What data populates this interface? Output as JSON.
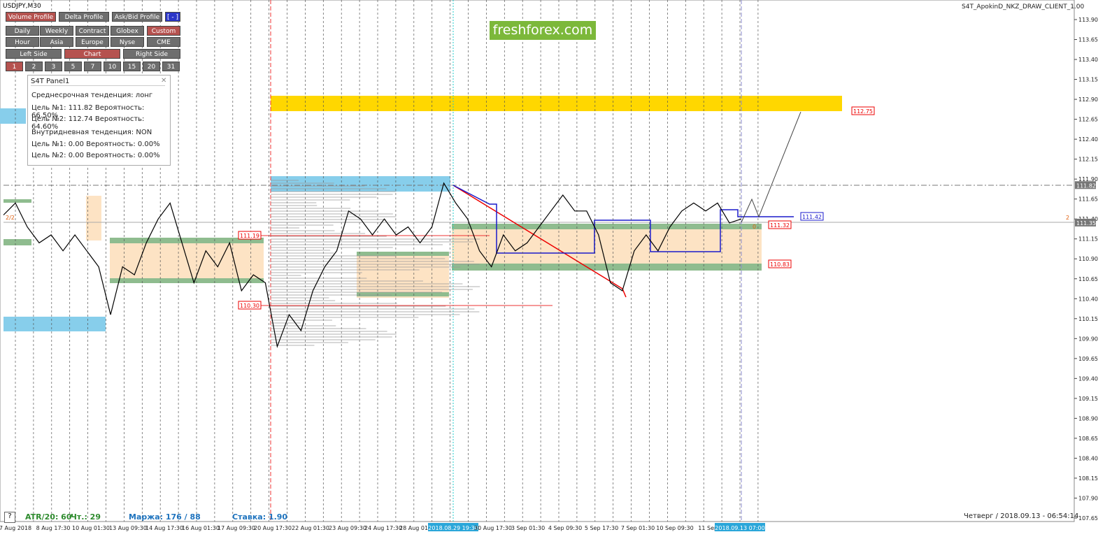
{
  "header": {
    "symbol": "USDJPY,M30",
    "indicator": "S4T_ApokinD_NKZ_DRAW_CLIENT_1.00",
    "logo": "freshforex.com"
  },
  "toolbar": {
    "rows": [
      [
        "Volume Profile",
        "Delta Profile",
        "Ask/Bid Profile",
        "[ - ]"
      ],
      [
        "Daily",
        "Weekly",
        "Contract",
        "Globex",
        "Custom"
      ],
      [
        "Hour",
        "Asia",
        "Europe",
        "Nyse",
        "CME"
      ],
      [
        "Left Side",
        "Chart",
        "Right Side"
      ],
      [
        "1",
        "2",
        "3",
        "5",
        "7",
        "10",
        "15",
        "20",
        "31"
      ]
    ]
  },
  "panel": {
    "title": "S4T Panel1",
    "lines": [
      "Среднесрочная тенденция: лонг",
      "Цель №1: 111.82 Вероятность: 66.50%",
      "Цель №2: 112.74 Вероятность: 64.60%",
      "Внутридневная тенденция: NON",
      "Цель №1: 0.00 Вероятность: 0.00%",
      "Цель №2: 0.00 Вероятность: 0.00%"
    ]
  },
  "chart": {
    "yticks": [
      {
        "value": 113.9,
        "label": "113.90"
      },
      {
        "value": 113.65,
        "label": "113.65"
      },
      {
        "value": 113.4,
        "label": "113.40"
      },
      {
        "value": 113.15,
        "label": "113.15"
      },
      {
        "value": 112.9,
        "label": "112.90"
      },
      {
        "value": 112.65,
        "label": "112.65"
      },
      {
        "value": 112.4,
        "label": "112.40"
      },
      {
        "value": 112.15,
        "label": "112.15"
      },
      {
        "value": 111.9,
        "label": "111.90"
      },
      {
        "value": 111.65,
        "label": "111.65"
      },
      {
        "value": 111.4,
        "label": "111.40"
      },
      {
        "value": 111.15,
        "label": "111.15"
      },
      {
        "value": 110.9,
        "label": "110.90"
      },
      {
        "value": 110.65,
        "label": "110.65"
      },
      {
        "value": 110.4,
        "label": "110.40"
      },
      {
        "value": 110.15,
        "label": "110.15"
      },
      {
        "value": 109.9,
        "label": "109.90"
      },
      {
        "value": 109.65,
        "label": "109.65"
      },
      {
        "value": 109.4,
        "label": "109.40"
      },
      {
        "value": 109.15,
        "label": "109.15"
      },
      {
        "value": 108.9,
        "label": "108.90"
      },
      {
        "value": 108.65,
        "label": "108.65"
      },
      {
        "value": 108.4,
        "label": "108.40"
      },
      {
        "value": 108.15,
        "label": "108.15"
      },
      {
        "value": 107.9,
        "label": "107.90"
      },
      {
        "value": 107.65,
        "label": "107.65"
      }
    ],
    "ylim": [
      107.53,
      114.12
    ],
    "price_markers": [
      {
        "value": 111.82,
        "label": "111.82"
      },
      {
        "value": 111.35,
        "label": "111.35"
      }
    ],
    "xlabels": [
      "7 Aug 2018",
      "8 Aug 17:30",
      "10 Aug 01:30",
      "13 Aug 09:30",
      "14 Aug 17:30",
      "16 Aug 01:30",
      "17 Aug 09:30",
      "20 Aug 17:30",
      "22 Aug 01:30",
      "23 Aug 09:30",
      "24 Aug 17:30",
      "28 Aug 01:30",
      "2018.08.29 19:30",
      "30 Aug 17:30",
      "3 Sep 01:30",
      "4 Sep 09:30",
      "5 Sep 17:30",
      "7 Sep 01:30",
      "10 Sep 09:30",
      "11 Sep 1",
      "2018.09.13 07:00"
    ],
    "price": [
      111.45,
      111.6,
      111.3,
      111.1,
      111.2,
      111.0,
      111.2,
      111.0,
      110.8,
      110.2,
      110.8,
      110.7,
      111.1,
      111.4,
      111.6,
      111.1,
      110.6,
      111.0,
      110.8,
      111.1,
      110.5,
      110.7,
      110.6,
      109.8,
      110.2,
      110.0,
      110.5,
      110.8,
      111.0,
      111.5,
      111.4,
      111.2,
      111.4,
      111.2,
      111.3,
      111.1,
      111.3,
      111.85,
      111.6,
      111.4,
      111.0,
      110.8,
      111.2,
      111.0,
      111.1,
      111.3,
      111.5,
      111.7,
      111.5,
      111.5,
      111.2,
      110.6,
      110.5,
      111.0,
      111.2,
      111.0,
      111.3,
      111.5,
      111.6,
      111.5,
      111.6,
      111.35,
      111.4
    ],
    "levels": [
      "111.19",
      "110.30",
      "112.75",
      "111.42",
      "111.32",
      "110.83",
      "2/2",
      "2",
      "0"
    ]
  },
  "status": {
    "atr": "ATR/20: 60",
    "day": "Чт.: 29",
    "margin": "Маржа: 176 / 88",
    "rate": "Ставка: 1.90",
    "time": "Четверг / 2018.09.13 - 06:54:14",
    "help": "?"
  }
}
